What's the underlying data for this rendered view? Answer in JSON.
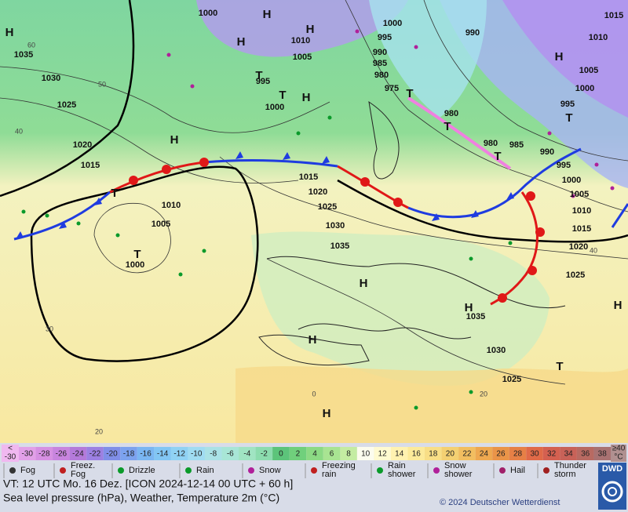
{
  "map": {
    "isobar_labels": [
      "1000",
      "1035",
      "1030",
      "1025",
      "1020",
      "1015",
      "1010",
      "1005",
      "1000",
      "995",
      "1000",
      "1010",
      "1005",
      "1000",
      "995",
      "990",
      "985",
      "980",
      "975",
      "980",
      "980",
      "985",
      "990",
      "995",
      "1000",
      "1005",
      "1010",
      "1015",
      "1020",
      "1025",
      "990",
      "1015",
      "1010",
      "1005",
      "1000",
      "995",
      "1015",
      "1020",
      "1025",
      "1030",
      "1035",
      "1035",
      "1030",
      "1025"
    ],
    "pressure_centers": [
      "H",
      "H",
      "H",
      "H",
      "H",
      "T",
      "T",
      "H",
      "T",
      "T",
      "T",
      "T",
      "T",
      "H",
      "T",
      "H",
      "H",
      "H",
      "H",
      "T",
      "H"
    ],
    "grid_labels": [
      "60",
      "50",
      "40",
      "30",
      "20",
      "0",
      "20",
      "40"
    ]
  },
  "temperature_scale": {
    "low_end": [
      "<",
      "-30"
    ],
    "high_end": [
      "≥40",
      "°C"
    ],
    "low_color": "#f0b8f0",
    "high_color": "#b09090",
    "steps": [
      {
        "value": -30,
        "color": "#e2a0e8"
      },
      {
        "value": -28,
        "color": "#d690e2"
      },
      {
        "value": -26,
        "color": "#c884de"
      },
      {
        "value": -24,
        "color": "#b47ada"
      },
      {
        "value": -22,
        "color": "#9c80e2"
      },
      {
        "value": -20,
        "color": "#808ee8"
      },
      {
        "value": -18,
        "color": "#7ca2ee"
      },
      {
        "value": -16,
        "color": "#7ab6f2"
      },
      {
        "value": -14,
        "color": "#82c6f4"
      },
      {
        "value": -12,
        "color": "#90d2f4"
      },
      {
        "value": -10,
        "color": "#a0dcf2"
      },
      {
        "value": -8,
        "color": "#aae2e6"
      },
      {
        "value": -6,
        "color": "#a8e6d6"
      },
      {
        "value": -4,
        "color": "#a0e4c2"
      },
      {
        "value": -2,
        "color": "#8cdcae"
      },
      {
        "value": 0,
        "color": "#5cc47a"
      },
      {
        "value": 2,
        "color": "#70d07c"
      },
      {
        "value": 4,
        "color": "#8cda84"
      },
      {
        "value": 6,
        "color": "#a8e492"
      },
      {
        "value": 8,
        "color": "#c4eca2"
      },
      {
        "value": 10,
        "color": "#fcfcee"
      },
      {
        "value": 12,
        "color": "#fffad0"
      },
      {
        "value": 14,
        "color": "#fff2b0"
      },
      {
        "value": 16,
        "color": "#fcea9a"
      },
      {
        "value": 18,
        "color": "#f8de86"
      },
      {
        "value": 20,
        "color": "#f4d072"
      },
      {
        "value": 22,
        "color": "#f2be60"
      },
      {
        "value": 24,
        "color": "#eea850"
      },
      {
        "value": 26,
        "color": "#ea9448"
      },
      {
        "value": 28,
        "color": "#e68046"
      },
      {
        "value": 30,
        "color": "#e06a48"
      },
      {
        "value": 32,
        "color": "#d46050"
      },
      {
        "value": 34,
        "color": "#c86258"
      },
      {
        "value": 36,
        "color": "#b86a62"
      },
      {
        "value": 38,
        "color": "#a87272"
      }
    ]
  },
  "weather_legend": [
    {
      "label": [
        "Fog"
      ]
    },
    {
      "label": [
        "Freez.",
        "Fog"
      ]
    },
    {
      "label": [
        "Drizzle"
      ]
    },
    {
      "label": [
        "Rain"
      ]
    },
    {
      "label": [
        "Snow"
      ]
    },
    {
      "label": [
        "Freezing",
        "rain"
      ]
    },
    {
      "label": [
        "Rain",
        "shower"
      ]
    },
    {
      "label": [
        "Snow",
        "shower"
      ]
    },
    {
      "label": [
        "Hail"
      ]
    },
    {
      "label": [
        "Thunder",
        "storm"
      ]
    }
  ],
  "footer": {
    "valid_time": "VT: 12 UTC Mo.  16 Dez. [ICON 2024-12-14  00 UTC + 60 h]",
    "description": "Sea level pressure (hPa), Weather, Temperature 2m (°C)",
    "copyright": "© 2024 Deutscher Wetterdienst",
    "logo": "DWD"
  }
}
